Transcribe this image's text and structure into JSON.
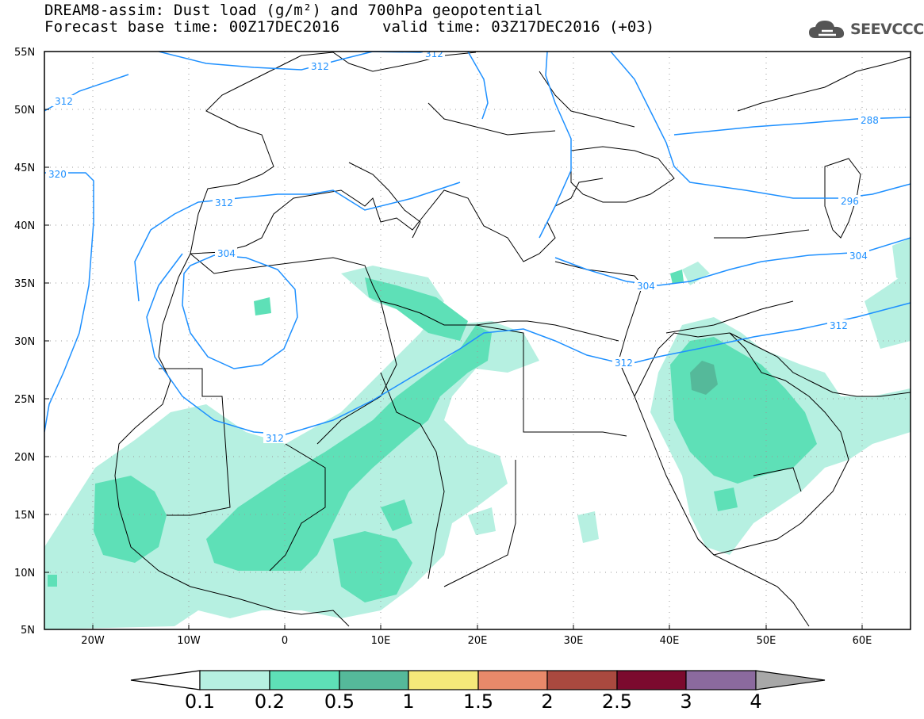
{
  "header": {
    "title_line1": "DREAM8-assim: Dust load (g/m²) and 700hPa geopotential",
    "title_line2": "Forecast base time: 00Z17DEC2016",
    "valid_time": "valid time: 03Z17DEC2016 (+03)",
    "logo_text": "SEEVCCC",
    "logo_icon": "cloud-logo-icon"
  },
  "map": {
    "lat_labels": [
      "55N",
      "50N",
      "45N",
      "40N",
      "35N",
      "30N",
      "25N",
      "20N",
      "15N",
      "10N",
      "5N"
    ],
    "lon_labels": [
      "20W",
      "10W",
      "0",
      "10E",
      "20E",
      "30E",
      "40E",
      "50E",
      "60E"
    ],
    "geopotential_labels": [
      "312",
      "312",
      "312",
      "320",
      "312",
      "304",
      "312",
      "312",
      "304",
      "304",
      "288",
      "296",
      "312"
    ]
  },
  "colorbar": {
    "ticks": [
      "0.1",
      "0.2",
      "0.5",
      "1",
      "1.5",
      "2",
      "2.5",
      "3",
      "4"
    ],
    "colors": [
      "#ffffff",
      "#b6f0e1",
      "#5ee0b7",
      "#55b99a",
      "#f5e97a",
      "#e8896a",
      "#a9493f",
      "#7b0a2e",
      "#8b6a9e",
      "#a8a8a8"
    ]
  },
  "colors": {
    "contour": "#1e90ff",
    "dust_low": "#b6f0e1",
    "dust_mid": "#5ee0b7",
    "dust_high": "#55b99a"
  }
}
